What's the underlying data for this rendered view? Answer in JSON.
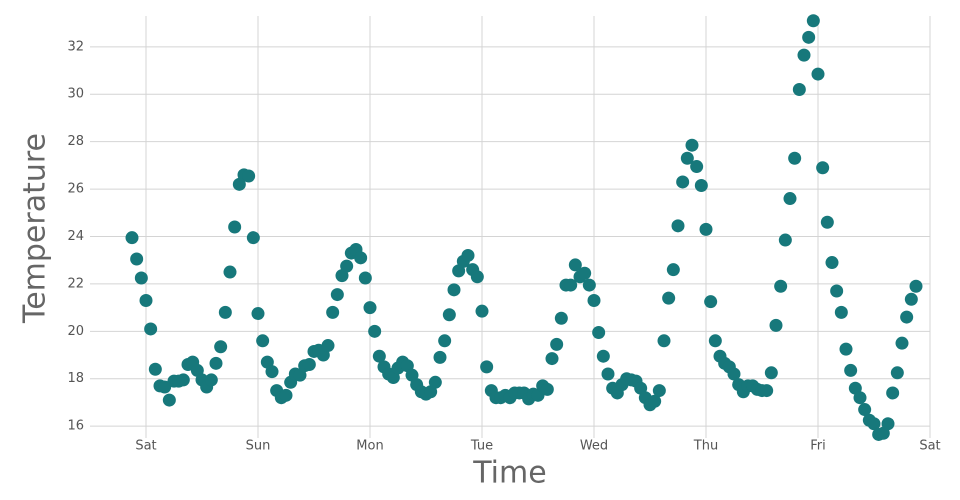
{
  "chart_data": {
    "type": "scatter",
    "x_label": "Time",
    "y_label": "Temperature",
    "color": "#17787b",
    "grid": true,
    "xlim": [
      -12,
      168
    ],
    "ylim": [
      15.5,
      33.3
    ],
    "xticks": [
      {
        "value": 0,
        "label": "Sat"
      },
      {
        "value": 24,
        "label": "Sun"
      },
      {
        "value": 48,
        "label": "Mon"
      },
      {
        "value": 72,
        "label": "Tue"
      },
      {
        "value": 96,
        "label": "Wed"
      },
      {
        "value": 120,
        "label": "Thu"
      },
      {
        "value": 144,
        "label": "Fri"
      },
      {
        "value": 168,
        "label": "Sat"
      }
    ],
    "yticks": [
      16,
      18,
      20,
      22,
      24,
      26,
      28,
      30,
      32
    ],
    "x": [
      -3,
      -2,
      -1,
      0,
      1,
      2,
      3,
      4,
      5,
      6,
      7,
      8,
      9,
      10,
      11,
      12,
      13,
      14,
      15,
      16,
      17,
      18,
      19,
      20,
      21,
      22,
      23,
      24,
      25,
      26,
      27,
      28,
      29,
      30,
      31,
      32,
      33,
      34,
      35,
      36,
      37,
      38,
      39,
      40,
      41,
      42,
      43,
      44,
      45,
      46,
      47,
      48,
      49,
      50,
      51,
      52,
      53,
      54,
      55,
      56,
      57,
      58,
      59,
      60,
      61,
      62,
      63,
      64,
      65,
      66,
      67,
      68,
      69,
      70,
      71,
      72,
      73,
      74,
      75,
      76,
      77,
      78,
      79,
      80,
      81,
      82,
      83,
      84,
      85,
      86,
      87,
      88,
      89,
      90,
      91,
      92,
      93,
      94,
      95,
      96,
      97,
      98,
      99,
      100,
      101,
      102,
      103,
      104,
      105,
      106,
      107,
      108,
      109,
      110,
      111,
      112,
      113,
      114,
      115,
      116,
      117,
      118,
      119,
      120,
      121,
      122,
      123,
      124,
      125,
      126,
      127,
      128,
      129,
      130,
      131,
      132,
      133,
      134,
      135,
      136,
      137,
      138,
      139,
      140,
      141,
      142,
      143,
      144,
      145,
      146,
      147,
      148,
      149,
      150,
      151,
      152,
      153,
      154,
      155,
      156,
      157,
      158,
      159,
      160,
      161,
      162,
      163,
      164,
      165
    ],
    "values": [
      23.95,
      23.05,
      22.25,
      21.3,
      20.1,
      18.4,
      17.7,
      17.65,
      17.1,
      17.9,
      17.9,
      17.95,
      18.6,
      18.7,
      18.35,
      17.95,
      17.65,
      17.95,
      18.65,
      19.35,
      20.8,
      22.5,
      24.4,
      26.2,
      26.6,
      26.55,
      23.95,
      20.75,
      19.6,
      18.7,
      18.3,
      17.5,
      17.2,
      17.3,
      17.85,
      18.2,
      18.15,
      18.55,
      18.6,
      19.15,
      19.2,
      19.0,
      19.4,
      20.8,
      21.55,
      22.35,
      22.75,
      23.3,
      23.45,
      23.1,
      22.25,
      21.0,
      20.0,
      18.95,
      18.5,
      18.2,
      18.05,
      18.45,
      18.7,
      18.55,
      18.15,
      17.75,
      17.45,
      17.35,
      17.45,
      17.85,
      18.9,
      19.6,
      20.7,
      21.75,
      22.55,
      22.95,
      23.2,
      22.6,
      22.3,
      20.85,
      18.5,
      17.5,
      17.2,
      17.2,
      17.3,
      17.2,
      17.4,
      17.4,
      17.4,
      17.15,
      17.35,
      17.3,
      17.7,
      17.55,
      18.85,
      19.45,
      20.55,
      21.95,
      21.95,
      22.8,
      22.3,
      22.45,
      21.95,
      21.3,
      19.95,
      18.95,
      18.2,
      17.6,
      17.4,
      17.75,
      18.0,
      17.95,
      17.9,
      17.6,
      17.2,
      16.9,
      17.05,
      17.5,
      19.6,
      21.4,
      22.6,
      24.45,
      26.3,
      27.3,
      27.85,
      26.95,
      26.15,
      24.3,
      21.25,
      19.6,
      18.95,
      18.65,
      18.5,
      18.2,
      17.75,
      17.45,
      17.7,
      17.7,
      17.55,
      17.5,
      17.5,
      18.25,
      20.25,
      21.9,
      23.85,
      25.6,
      27.3,
      30.2,
      31.65,
      32.4,
      33.1,
      30.85,
      26.9,
      24.6,
      22.9,
      21.7,
      20.8,
      19.25,
      18.35,
      17.6,
      17.2,
      16.7,
      16.25,
      16.1,
      15.65,
      15.7,
      16.1,
      17.4,
      18.25,
      19.5,
      20.6,
      21.35,
      21.9
    ]
  }
}
